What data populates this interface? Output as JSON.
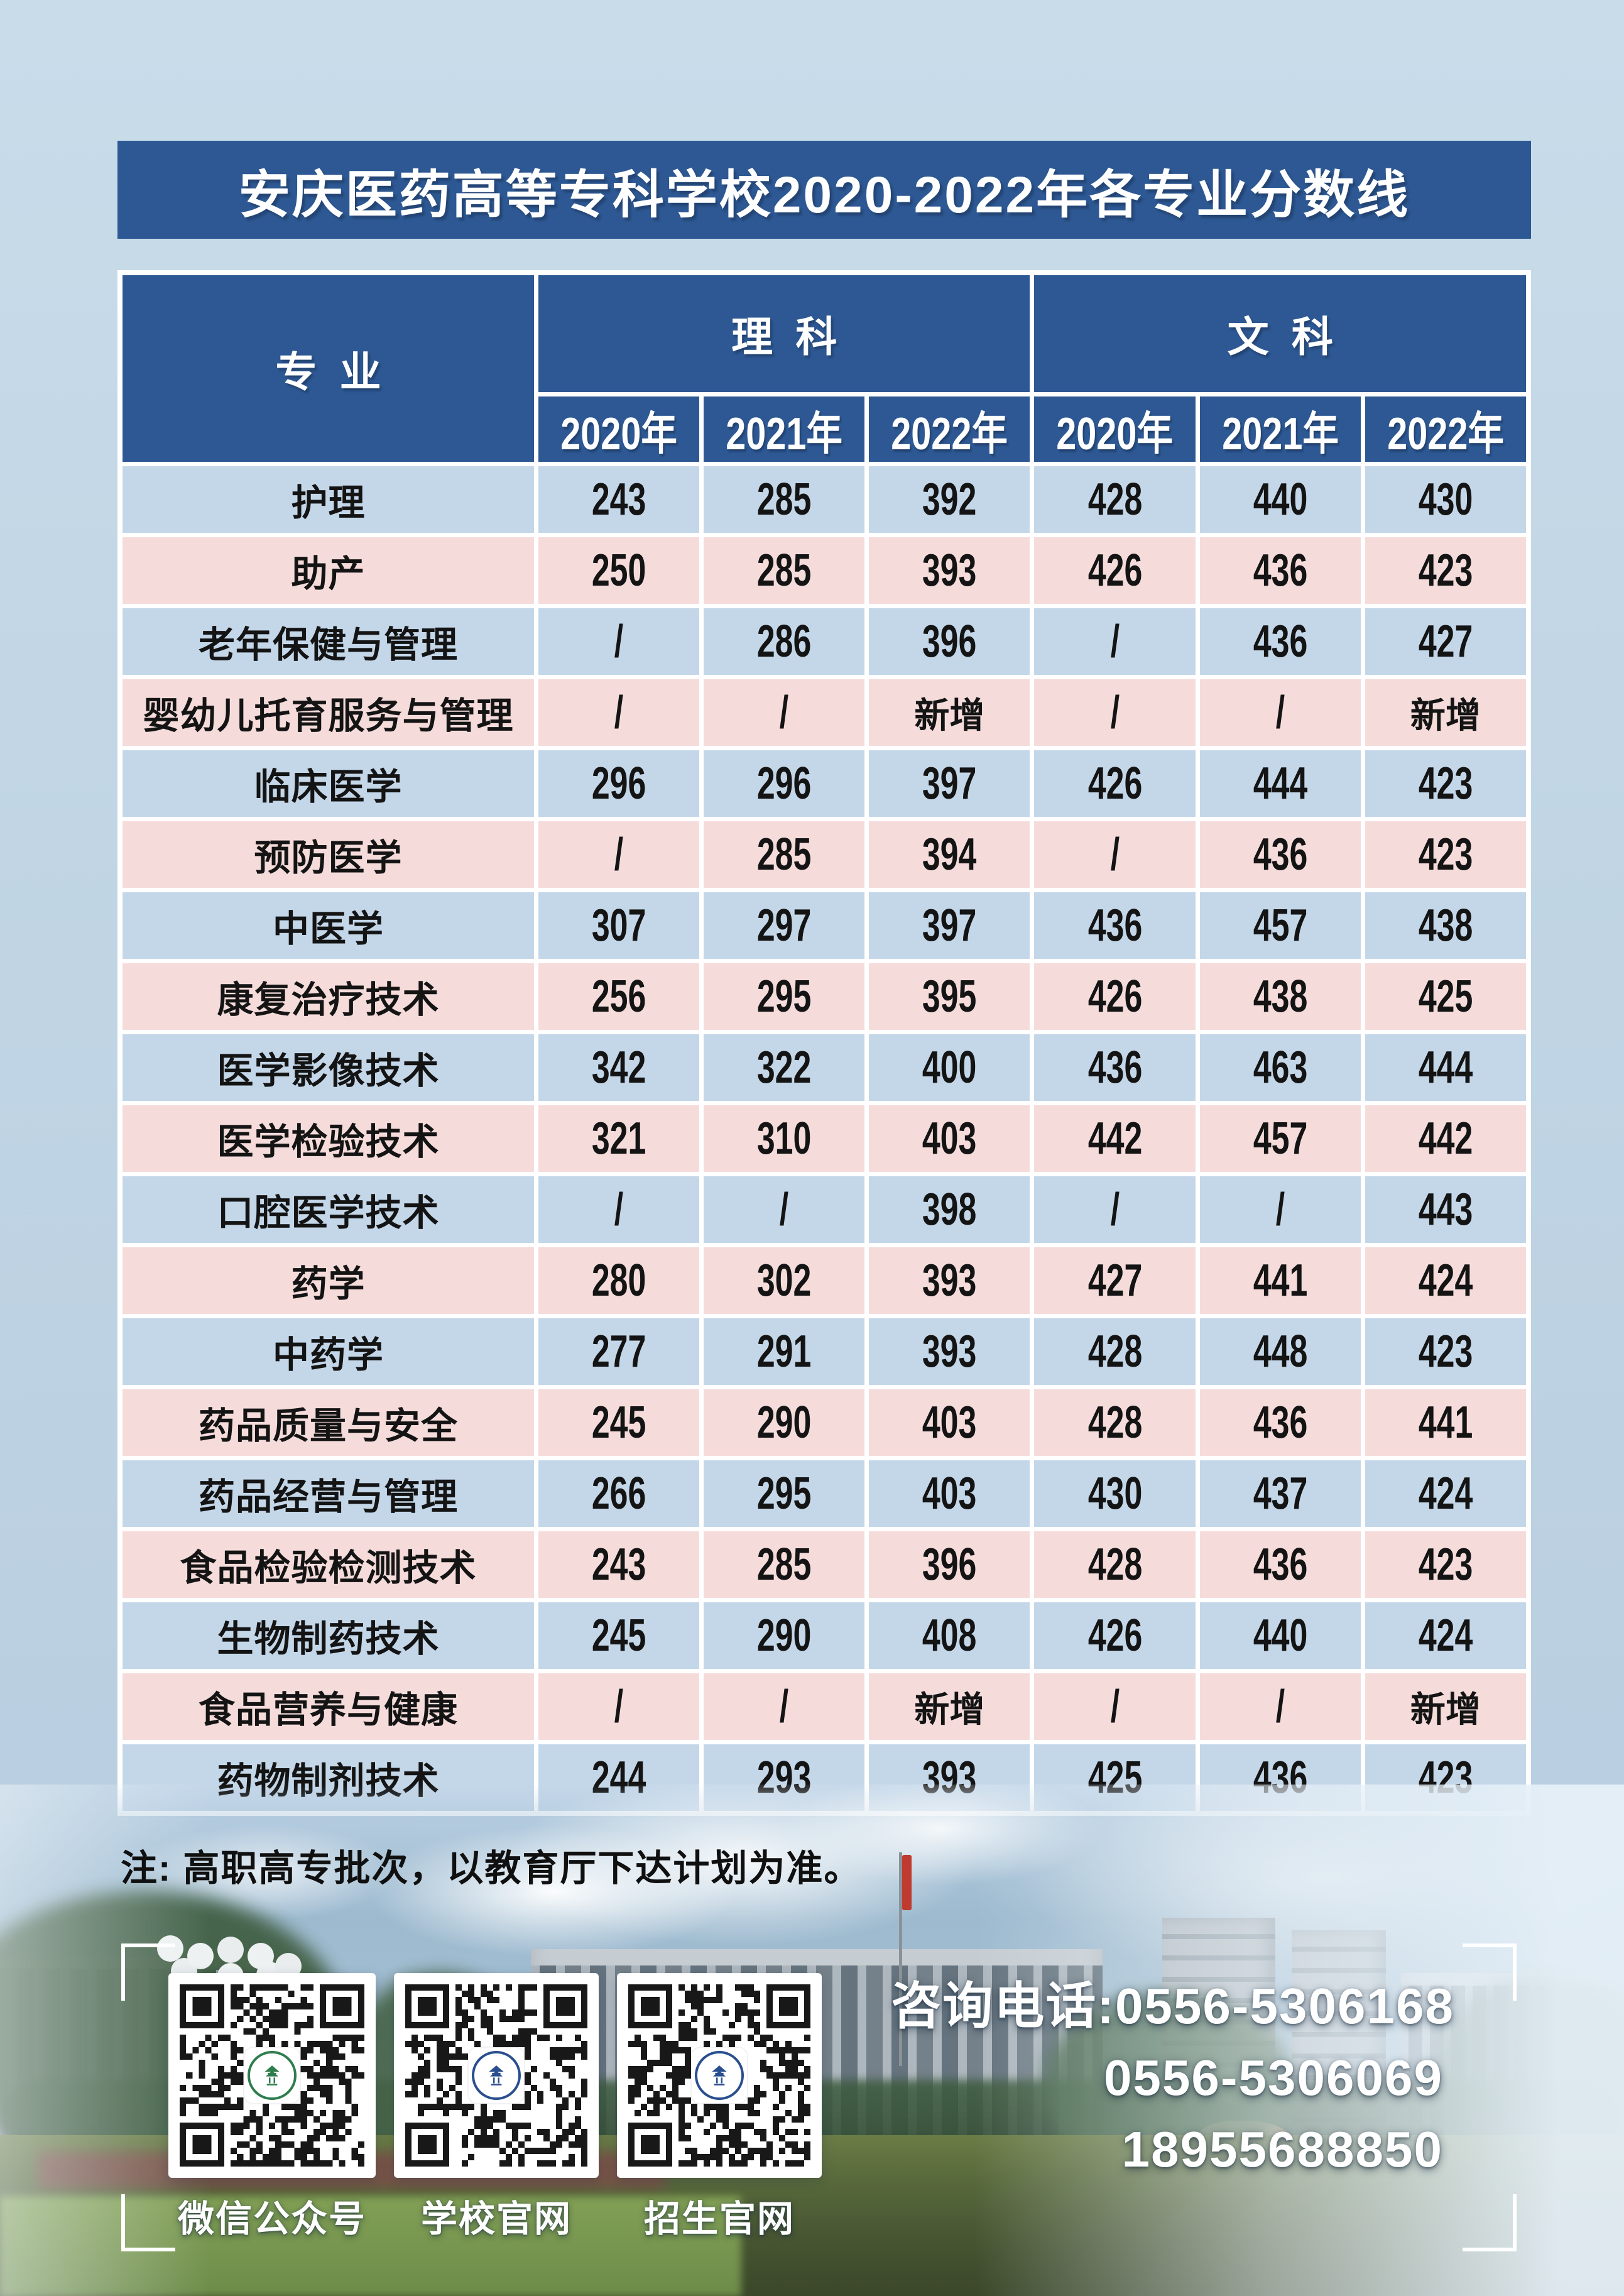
{
  "title": "安庆医药高等专科学校2020-2022年各专业分数线",
  "table": {
    "col_major": "专业",
    "group_science": "理科",
    "group_arts": "文科",
    "years": [
      "2020年",
      "2021年",
      "2022年",
      "2020年",
      "2021年",
      "2022年"
    ],
    "rows": [
      {
        "major": "护理",
        "values": [
          "243",
          "285",
          "392",
          "428",
          "440",
          "430"
        ]
      },
      {
        "major": "助产",
        "values": [
          "250",
          "285",
          "393",
          "426",
          "436",
          "423"
        ]
      },
      {
        "major": "老年保健与管理",
        "values": [
          "/",
          "286",
          "396",
          "/",
          "436",
          "427"
        ]
      },
      {
        "major": "婴幼儿托育服务与管理",
        "values": [
          "/",
          "/",
          "新增",
          "/",
          "/",
          "新增"
        ]
      },
      {
        "major": "临床医学",
        "values": [
          "296",
          "296",
          "397",
          "426",
          "444",
          "423"
        ]
      },
      {
        "major": "预防医学",
        "values": [
          "/",
          "285",
          "394",
          "/",
          "436",
          "423"
        ]
      },
      {
        "major": "中医学",
        "values": [
          "307",
          "297",
          "397",
          "436",
          "457",
          "438"
        ]
      },
      {
        "major": "康复治疗技术",
        "values": [
          "256",
          "295",
          "395",
          "426",
          "438",
          "425"
        ]
      },
      {
        "major": "医学影像技术",
        "values": [
          "342",
          "322",
          "400",
          "436",
          "463",
          "444"
        ]
      },
      {
        "major": "医学检验技术",
        "values": [
          "321",
          "310",
          "403",
          "442",
          "457",
          "442"
        ]
      },
      {
        "major": "口腔医学技术",
        "values": [
          "/",
          "/",
          "398",
          "/",
          "/",
          "443"
        ]
      },
      {
        "major": "药学",
        "values": [
          "280",
          "302",
          "393",
          "427",
          "441",
          "424"
        ]
      },
      {
        "major": "中药学",
        "values": [
          "277",
          "291",
          "393",
          "428",
          "448",
          "423"
        ]
      },
      {
        "major": "药品质量与安全",
        "values": [
          "245",
          "290",
          "403",
          "428",
          "436",
          "441"
        ]
      },
      {
        "major": "药品经营与管理",
        "values": [
          "266",
          "295",
          "403",
          "430",
          "437",
          "424"
        ]
      },
      {
        "major": "食品检验检测技术",
        "values": [
          "243",
          "285",
          "396",
          "428",
          "436",
          "423"
        ]
      },
      {
        "major": "生物制药技术",
        "values": [
          "245",
          "290",
          "408",
          "426",
          "440",
          "424"
        ]
      },
      {
        "major": "食品营养与健康",
        "values": [
          "/",
          "/",
          "新增",
          "/",
          "/",
          "新增"
        ]
      },
      {
        "major": "药物制剂技术",
        "values": [
          "244",
          "293",
          "393",
          "425",
          "436",
          "423"
        ]
      }
    ]
  },
  "note": "注: 高职高专批次，以教育厅下达计划为准。",
  "footer": {
    "qr_items": [
      {
        "label": "微信公众号"
      },
      {
        "label": "学校官网"
      },
      {
        "label": "招生官网"
      }
    ],
    "phone_prefix": "咨询电话:",
    "phones": [
      "0556-5306168",
      "0556-5306069",
      "18955688850"
    ]
  },
  "colors": {
    "header_blue": "#2d5893",
    "row_blue": "#c4d7e9",
    "row_pink": "#f5dcdb",
    "page_bg": "#bfd4e4",
    "table_gap": "#ffffff",
    "cell_text": "#141414",
    "footer_text": "#ffffff",
    "logo_green": "#2f7d4e",
    "logo_blue": "#2a4f8f"
  }
}
